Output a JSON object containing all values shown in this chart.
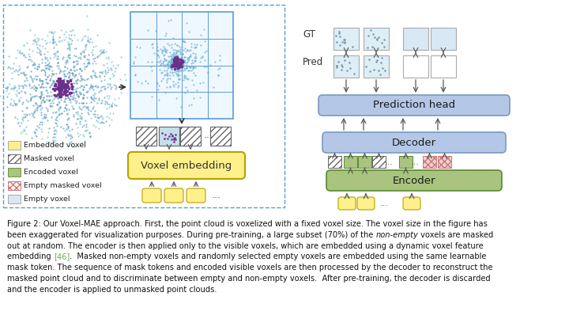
{
  "bg_color": "#ffffff",
  "prediction_head_color": "#b4c7e7",
  "decoder_color": "#b4c7e7",
  "encoder_color": "#a9c47f",
  "embedded_voxel_color": "#fef08a",
  "masked_voxel_color": "#d9d9d9",
  "encoded_voxel_color": "#a9c47f",
  "empty_masked_color": "#e8b4b8",
  "empty_voxel_color": "#dce6f1",
  "dashed_box_color": "#5b9bd5",
  "text_color": "#111111",
  "label_ref_color": "#70ad47",
  "caption_line1": "Figure 2: Our Voxel-MAE approach. First, the point cloud is voxelized with a fixed voxel size. The voxel size in the figure has",
  "caption_line2a": "been exaggerated for visualization purposes. During pre-training, a large subset (70%) of the ",
  "caption_line2b": "non-empty",
  "caption_line2c": " voxels are masked",
  "caption_line3": "out at random. The encoder is then applied only to the visible voxels, which are embedded using a dynamic voxel feature",
  "caption_line4a": "embedding ",
  "caption_line4b": "[46]",
  "caption_line4c": ".  Masked non-empty voxels and randomly selected empty voxels are embedded using the same learnable",
  "caption_line5": "mask token. The sequence of mask tokens and encoded visible voxels are then processed by the decoder to reconstruct the",
  "caption_line6": "masked point cloud and to discriminate between empty and non-empty voxels.  After pre-training, the decoder is discarded",
  "caption_line7": "and the encoder is applied to unmasked point clouds."
}
